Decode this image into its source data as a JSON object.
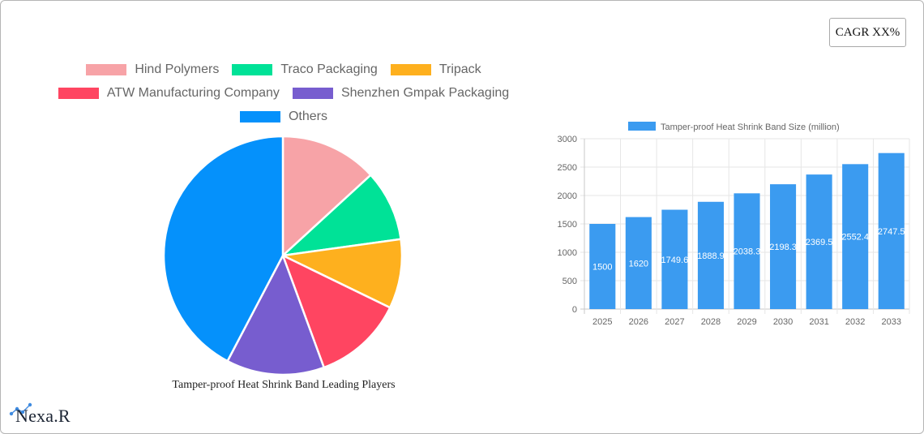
{
  "cagr_badge": {
    "label": "CAGR XX%"
  },
  "pie_chart": {
    "title": "Tamper-proof Heat Shrink Band Leading Players",
    "legend": [
      {
        "label": "Hind Polymers",
        "color": "#f7a3a7"
      },
      {
        "label": "Traco Packaging",
        "color": "#00e297"
      },
      {
        "label": "Tripack",
        "color": "#feb01e"
      },
      {
        "label": "ATW Manufacturing Company",
        "color": "#ff4561"
      },
      {
        "label": "Shenzhen Gmpak Packaging",
        "color": "#775dcf"
      },
      {
        "label": "Others",
        "color": "#0591fb"
      }
    ]
  },
  "bar_chart": {
    "legend_label": "Tamper-proof Heat Shrink Band Size (million)",
    "bar_color": "#3b9bf0"
  },
  "logo": {
    "text": "Nexa.R"
  },
  "chart_data": [
    {
      "type": "pie",
      "title": "Tamper-proof Heat Shrink Band Leading Players",
      "categories": [
        "Hind Polymers",
        "Traco Packaging",
        "Tripack",
        "ATW Manufacturing Company",
        "Shenzhen Gmpak Packaging",
        "Others"
      ],
      "values": [
        13.2,
        9.6,
        9.4,
        12.2,
        13.3,
        42.3
      ],
      "colors": [
        "#f7a3a7",
        "#00e297",
        "#feb01e",
        "#ff4561",
        "#775dcf",
        "#0591fb"
      ],
      "legend_position": "top",
      "unit": "approx. share %"
    },
    {
      "type": "bar",
      "title": "",
      "categories": [
        "2025",
        "2026",
        "2027",
        "2028",
        "2029",
        "2030",
        "2031",
        "2032",
        "2033"
      ],
      "series": [
        {
          "name": "Tamper-proof Heat Shrink Band Size (million)",
          "values": [
            1500,
            1620,
            1749.6,
            1888.9,
            2038.3,
            2198.3,
            2369.5,
            2552.4,
            2747.5
          ]
        }
      ],
      "data_labels": [
        "1500",
        "1620",
        "1749.6",
        "1888.9",
        "2038.3",
        "2198.3",
        "2369.5",
        "2552.4",
        "2747.5"
      ],
      "xlabel": "",
      "ylabel": "",
      "ylim": [
        0,
        3000
      ],
      "yticks": [
        0,
        500,
        1000,
        1500,
        2000,
        2500,
        3000
      ],
      "grid": true,
      "legend_position": "top"
    }
  ]
}
